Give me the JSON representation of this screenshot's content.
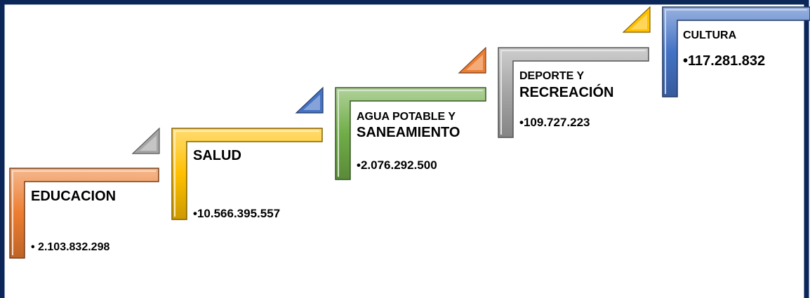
{
  "steps": [
    {
      "label": [
        "EDUCACION"
      ],
      "value": "• 2.103.832.298",
      "color": "#ed7d31",
      "triangle_color": "#a5a5a5"
    },
    {
      "label": [
        "SALUD"
      ],
      "value": "•10.566.395.557",
      "color": "#ffc000",
      "triangle_color": "#4472c4"
    },
    {
      "label": [
        "AGUA POTABLE Y",
        "SANEAMIENTO"
      ],
      "value": "•2.076.292.500",
      "color": "#70ad47",
      "triangle_color": "#ed7d31"
    },
    {
      "label": [
        "DEPORTE Y",
        "RECREACIÓN"
      ],
      "value": "•109.727.223",
      "color": "#a5a5a5",
      "triangle_color": "#ffc000"
    },
    {
      "label": [
        "CULTURA"
      ],
      "value": "•117.281.832",
      "color": "#4472c4"
    }
  ]
}
